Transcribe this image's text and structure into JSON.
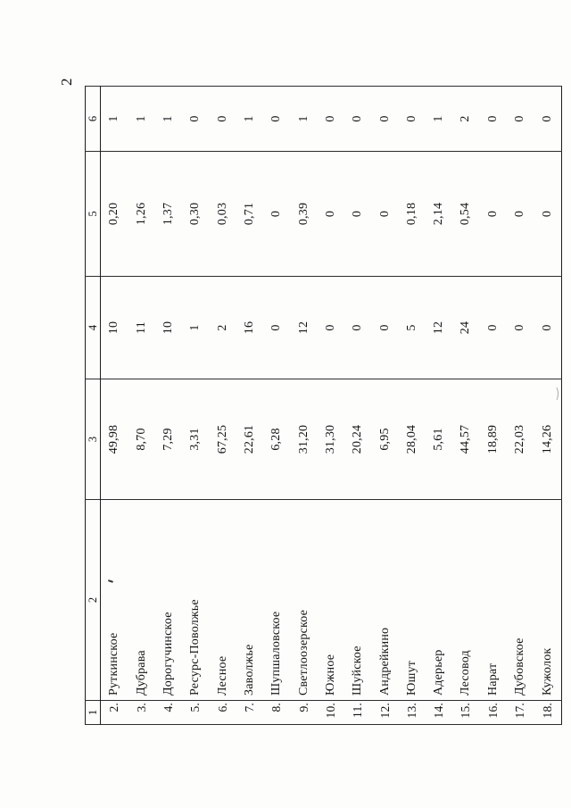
{
  "page": {
    "number": "2"
  },
  "table": {
    "headers": [
      "1",
      "2",
      "3",
      "4",
      "5",
      "6"
    ],
    "rows": [
      [
        "2.",
        "Руткинское",
        "49,98",
        "10",
        "0,20",
        "1"
      ],
      [
        "3.",
        "Дубрава",
        "8,70",
        "11",
        "1,26",
        "1"
      ],
      [
        "4.",
        "Дорогучинское",
        "7,29",
        "10",
        "1,37",
        "1"
      ],
      [
        "5.",
        "Ресурс-Поволжье",
        "3,31",
        "1",
        "0,30",
        "0"
      ],
      [
        "6.",
        "Лесное",
        "67,25",
        "2",
        "0,03",
        "0"
      ],
      [
        "7.",
        "Заволжье",
        "22,61",
        "16",
        "0,71",
        "1"
      ],
      [
        "8.",
        "Шупшаловское",
        "6,28",
        "0",
        "0",
        "0"
      ],
      [
        "9.",
        "Светлоозерское",
        "31,20",
        "12",
        "0,39",
        "1"
      ],
      [
        "10.",
        "Южное",
        "31,30",
        "0",
        "0",
        "0"
      ],
      [
        "11.",
        "Шуйское",
        "20,24",
        "0",
        "0",
        "0"
      ],
      [
        "12.",
        "Андрейкино",
        "6,95",
        "0",
        "0",
        "0"
      ],
      [
        "13.",
        "Юшут",
        "28,04",
        "5",
        "0,18",
        "0"
      ],
      [
        "14.",
        "Адерьер",
        "5,61",
        "12",
        "2,14",
        "1"
      ],
      [
        "15.",
        "Лесовод",
        "44,57",
        "24",
        "0,54",
        "2"
      ],
      [
        "16.",
        "Нарат",
        "18,89",
        "0",
        "0",
        "0"
      ],
      [
        "17.",
        "Дубовское",
        "22,03",
        "0",
        "0",
        "0"
      ],
      [
        "18.",
        "Кужолок",
        "14,26",
        "0",
        "0",
        "0"
      ]
    ]
  }
}
